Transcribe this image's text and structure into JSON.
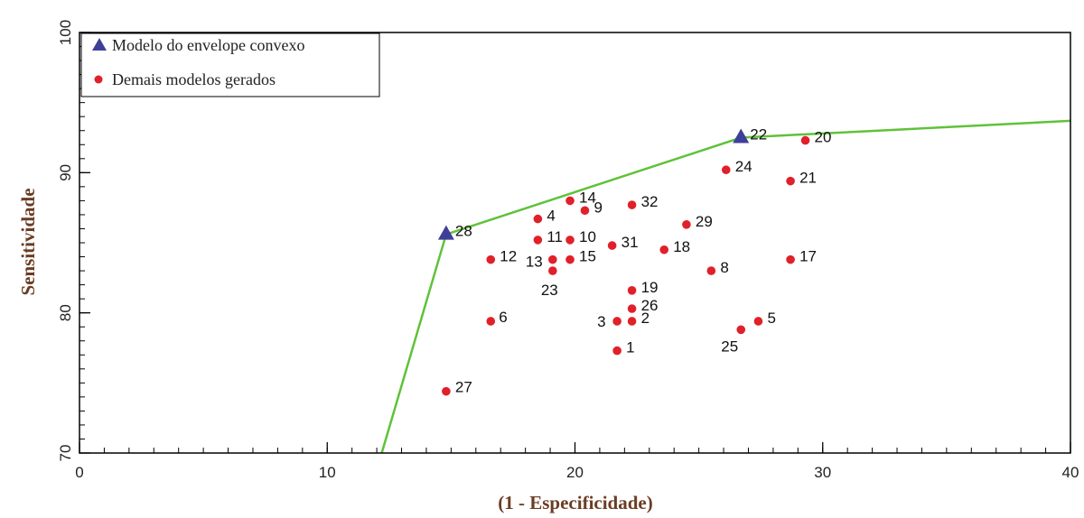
{
  "chart_data": {
    "type": "scatter",
    "xlabel": "(1 - Especificidade)",
    "ylabel": "Sensitividade",
    "xlim": [
      0,
      40
    ],
    "ylim": [
      70,
      100
    ],
    "x_ticks": [
      0,
      10,
      20,
      30,
      40
    ],
    "y_ticks": [
      70,
      80,
      90,
      100
    ],
    "x_minor_step": 1,
    "y_minor_step": 1,
    "grid": false,
    "legend_position": "top-left",
    "legend": [
      {
        "label": "Modelo do envelope convexo",
        "marker": "triangle",
        "color": "#3f3f9a"
      },
      {
        "label": "Demais modelos gerados",
        "marker": "circle",
        "color": "#e0202a"
      }
    ],
    "hull_line": {
      "color": "#5fc23a",
      "x": [
        12.2,
        14.8,
        26.7,
        40
      ],
      "y": [
        70,
        85.6,
        92.5,
        93.7
      ]
    },
    "series": [
      {
        "name": "Modelo do envelope convexo",
        "marker": "triangle",
        "color": "#3f3f9a",
        "points": [
          {
            "label": "28",
            "x": 14.8,
            "y": 85.6
          },
          {
            "label": "22",
            "x": 26.7,
            "y": 92.5
          }
        ]
      },
      {
        "name": "Demais modelos gerados",
        "marker": "circle",
        "color": "#e0202a",
        "points": [
          {
            "label": "1",
            "x": 21.7,
            "y": 77.3
          },
          {
            "label": "2",
            "x": 22.3,
            "y": 79.4
          },
          {
            "label": "3",
            "x": 21.7,
            "y": 79.4
          },
          {
            "label": "4",
            "x": 18.5,
            "y": 86.7
          },
          {
            "label": "5",
            "x": 27.4,
            "y": 79.4
          },
          {
            "label": "6",
            "x": 16.6,
            "y": 79.4
          },
          {
            "label": "8",
            "x": 25.5,
            "y": 83.0
          },
          {
            "label": "9",
            "x": 20.4,
            "y": 87.3
          },
          {
            "label": "10",
            "x": 19.8,
            "y": 85.2
          },
          {
            "label": "11",
            "x": 18.5,
            "y": 85.2
          },
          {
            "label": "12",
            "x": 16.6,
            "y": 83.8
          },
          {
            "label": "13",
            "x": 19.1,
            "y": 83.8
          },
          {
            "label": "14",
            "x": 19.8,
            "y": 88.0
          },
          {
            "label": "15",
            "x": 19.8,
            "y": 83.8
          },
          {
            "label": "17",
            "x": 28.7,
            "y": 83.8
          },
          {
            "label": "18",
            "x": 23.6,
            "y": 84.5
          },
          {
            "label": "19",
            "x": 22.3,
            "y": 81.6
          },
          {
            "label": "20",
            "x": 29.3,
            "y": 92.3
          },
          {
            "label": "21",
            "x": 28.7,
            "y": 89.4
          },
          {
            "label": "23",
            "x": 19.1,
            "y": 83.0
          },
          {
            "label": "24",
            "x": 26.1,
            "y": 90.2
          },
          {
            "label": "25",
            "x": 26.7,
            "y": 78.8
          },
          {
            "label": "26",
            "x": 22.3,
            "y": 80.3
          },
          {
            "label": "27",
            "x": 14.8,
            "y": 74.4
          },
          {
            "label": "29",
            "x": 24.5,
            "y": 86.3
          },
          {
            "label": "31",
            "x": 21.5,
            "y": 84.8
          },
          {
            "label": "32",
            "x": 22.3,
            "y": 87.7
          }
        ]
      }
    ]
  }
}
